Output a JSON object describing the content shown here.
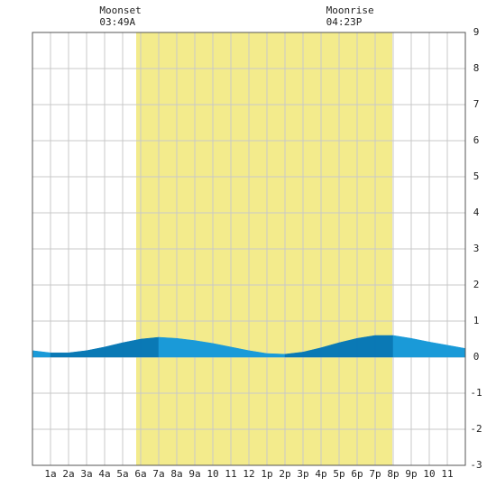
{
  "chart_data": {
    "type": "tide-area",
    "x": [
      0,
      1,
      2,
      3,
      4,
      5,
      6,
      7,
      8,
      9,
      10,
      11,
      12,
      13,
      14,
      15,
      16,
      17,
      18,
      19,
      20,
      21,
      22,
      23,
      24
    ],
    "values": [
      0.18,
      0.12,
      0.12,
      0.18,
      0.28,
      0.4,
      0.5,
      0.55,
      0.52,
      0.46,
      0.38,
      0.28,
      0.18,
      0.1,
      0.08,
      0.14,
      0.26,
      0.4,
      0.52,
      0.6,
      0.6,
      0.52,
      0.42,
      0.33,
      0.24
    ],
    "rising_color": "#0a79b5",
    "falling_color": "#1a9ad8",
    "shaded_x": [
      5.75,
      19.95
    ],
    "shaded_color": "#f3eb8c",
    "xlim": [
      0,
      24
    ],
    "ylim": [
      -3,
      9
    ],
    "xticks": [
      {
        "value": 1,
        "label": "1a"
      },
      {
        "value": 2,
        "label": "2a"
      },
      {
        "value": 3,
        "label": "3a"
      },
      {
        "value": 4,
        "label": "4a"
      },
      {
        "value": 5,
        "label": "5a"
      },
      {
        "value": 6,
        "label": "6a"
      },
      {
        "value": 7,
        "label": "7a"
      },
      {
        "value": 8,
        "label": "8a"
      },
      {
        "value": 9,
        "label": "9a"
      },
      {
        "value": 10,
        "label": "10"
      },
      {
        "value": 11,
        "label": "11"
      },
      {
        "value": 12,
        "label": "12"
      },
      {
        "value": 13,
        "label": "1p"
      },
      {
        "value": 14,
        "label": "2p"
      },
      {
        "value": 15,
        "label": "3p"
      },
      {
        "value": 16,
        "label": "4p"
      },
      {
        "value": 17,
        "label": "5p"
      },
      {
        "value": 18,
        "label": "6p"
      },
      {
        "value": 19,
        "label": "7p"
      },
      {
        "value": 20,
        "label": "8p"
      },
      {
        "value": 21,
        "label": "9p"
      },
      {
        "value": 22,
        "label": "10"
      },
      {
        "value": 23,
        "label": "11"
      }
    ],
    "yticks": [
      -3,
      -2,
      -1,
      0,
      1,
      2,
      3,
      4,
      5,
      6,
      7,
      8,
      9
    ],
    "grid": true,
    "annotations": [
      {
        "label": "Moonset",
        "time": "03:49A",
        "x": 3.82
      },
      {
        "label": "Moonrise",
        "time": "04:23P",
        "x": 16.38
      }
    ]
  }
}
